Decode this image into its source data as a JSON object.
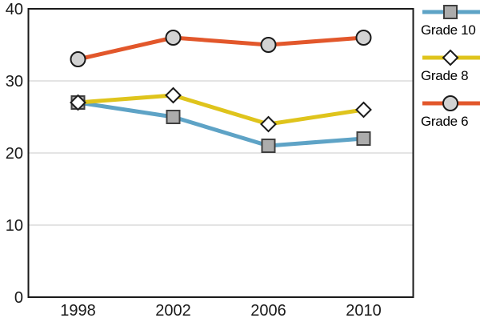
{
  "chart_data": {
    "type": "line",
    "x": [
      "1998",
      "2002",
      "2006",
      "2010"
    ],
    "series": [
      {
        "name": "Grade 10",
        "values": [
          27,
          25,
          21,
          22
        ],
        "color": "#5EA3C6",
        "marker": "square",
        "marker_fill": "#ACACAC",
        "marker_stroke": "#3F3F3F"
      },
      {
        "name": "Grade 8",
        "values": [
          27,
          28,
          24,
          26
        ],
        "color": "#DFC41C",
        "marker": "diamond",
        "marker_fill": "#FFFFFF",
        "marker_stroke": "#1A1A1A"
      },
      {
        "name": "Grade 6",
        "values": [
          33,
          36,
          35,
          36
        ],
        "color": "#E2572B",
        "marker": "circle",
        "marker_fill": "#D2D2D2",
        "marker_stroke": "#1A1A1A"
      }
    ],
    "title": "",
    "xlabel": "",
    "ylabel": "",
    "ylim": [
      0,
      40
    ],
    "yticks": [
      0,
      10,
      20,
      30,
      40
    ],
    "xticklabels": [
      "1998",
      "2002",
      "2006",
      "2010"
    ],
    "grid": true,
    "legend_position": "right-outside",
    "colors": {
      "grid": "#C9C9C9",
      "axis": "#1A1A1A",
      "text": "#1A1A1A",
      "background": "#FFFFFF"
    }
  }
}
